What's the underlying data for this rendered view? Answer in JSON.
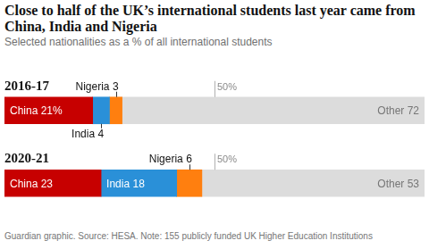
{
  "chart_data": {
    "type": "bar",
    "title": "Close to half of the UK’s international students last year came from China, India and Nigeria",
    "subtitle": "Selected nationalities as a % of all international students",
    "source": "Guardian graphic. Source: HESA. Note: 155 publicly funded UK Higher Education Institutions",
    "orientation": "horizontal",
    "stacked": true,
    "data_labels": true,
    "tick_labels": "y",
    "grid": false,
    "xlim": [
      0,
      100
    ],
    "categories": [
      "2016-17",
      "2020-21"
    ],
    "series": [
      {
        "name": "China",
        "color": "#c70000",
        "values": [
          21,
          23
        ],
        "value_labels": [
          "China 21%",
          "China 23"
        ]
      },
      {
        "name": "India",
        "color": "#2a90d8",
        "values": [
          4,
          18
        ],
        "value_labels": [
          "India 4",
          "India 18"
        ]
      },
      {
        "name": "Nigeria",
        "color": "#ff7f0f",
        "values": [
          3,
          6
        ],
        "value_labels": [
          "Nigeria 3",
          "Nigeria 6"
        ]
      },
      {
        "name": "Other",
        "color": "#dcdcdc",
        "values": [
          72,
          53
        ],
        "value_labels": [
          "Other 72",
          "Other 53"
        ]
      }
    ],
    "annotations": [
      {
        "value": 50,
        "label": "50%"
      }
    ]
  }
}
